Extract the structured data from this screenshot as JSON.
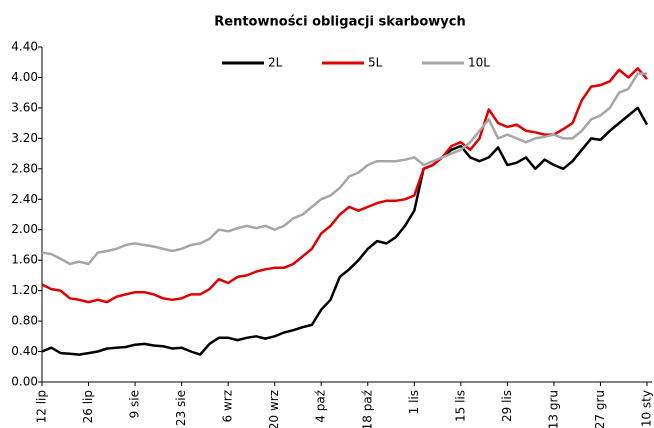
{
  "chart_data": {
    "type": "line",
    "title": "Rentowności obligacji skarbowych",
    "categories": [
      "12 lip",
      null,
      null,
      null,
      null,
      "26 lip",
      null,
      null,
      null,
      null,
      "9 sie",
      null,
      null,
      null,
      null,
      "23 sie",
      null,
      null,
      null,
      null,
      "6 wrz",
      null,
      null,
      null,
      null,
      "20 wrz",
      null,
      null,
      null,
      null,
      "4 paź",
      null,
      null,
      null,
      null,
      "18 paź",
      null,
      null,
      null,
      null,
      "1 lis",
      null,
      null,
      null,
      null,
      "15 lis",
      null,
      null,
      null,
      null,
      "29 lis",
      null,
      null,
      null,
      null,
      "13 gru",
      null,
      null,
      null,
      null,
      "27 gru",
      null,
      null,
      null,
      null,
      "10 sty"
    ],
    "series": [
      {
        "name": "2L",
        "color": "#000000",
        "values": [
          0.4,
          0.45,
          0.38,
          0.37,
          0.36,
          0.38,
          0.4,
          0.44,
          0.45,
          0.46,
          0.49,
          0.5,
          0.48,
          0.47,
          0.44,
          0.45,
          0.4,
          0.36,
          0.5,
          0.58,
          0.58,
          0.55,
          0.58,
          0.6,
          0.57,
          0.6,
          0.65,
          0.68,
          0.72,
          0.75,
          0.95,
          1.08,
          1.38,
          1.48,
          1.6,
          1.75,
          1.85,
          1.82,
          1.9,
          2.05,
          2.25,
          2.8,
          2.85,
          2.95,
          3.05,
          3.1,
          2.95,
          2.9,
          2.95,
          3.08,
          2.85,
          2.88,
          2.95,
          2.8,
          2.92,
          2.85,
          2.8,
          2.9,
          3.05,
          3.2,
          3.18,
          3.3,
          3.4,
          3.5,
          3.6,
          3.38
        ]
      },
      {
        "name": "5L",
        "color": "#e00000",
        "values": [
          1.28,
          1.22,
          1.2,
          1.1,
          1.08,
          1.05,
          1.08,
          1.05,
          1.12,
          1.15,
          1.18,
          1.18,
          1.15,
          1.1,
          1.08,
          1.1,
          1.15,
          1.15,
          1.22,
          1.35,
          1.3,
          1.38,
          1.4,
          1.45,
          1.48,
          1.5,
          1.5,
          1.55,
          1.65,
          1.75,
          1.95,
          2.05,
          2.2,
          2.3,
          2.25,
          2.3,
          2.35,
          2.38,
          2.38,
          2.4,
          2.45,
          2.8,
          2.85,
          2.95,
          3.1,
          3.15,
          3.05,
          3.2,
          3.58,
          3.4,
          3.35,
          3.38,
          3.3,
          3.28,
          3.25,
          3.25,
          3.32,
          3.4,
          3.7,
          3.88,
          3.9,
          3.95,
          4.1,
          4.0,
          4.12,
          3.98
        ]
      },
      {
        "name": "10L",
        "color": "#a6a6a6",
        "values": [
          1.7,
          1.68,
          1.62,
          1.55,
          1.58,
          1.55,
          1.7,
          1.72,
          1.75,
          1.8,
          1.82,
          1.8,
          1.78,
          1.75,
          1.72,
          1.75,
          1.8,
          1.82,
          1.88,
          2.0,
          1.98,
          2.02,
          2.05,
          2.02,
          2.05,
          2.0,
          2.05,
          2.15,
          2.2,
          2.3,
          2.4,
          2.45,
          2.55,
          2.7,
          2.75,
          2.85,
          2.9,
          2.9,
          2.9,
          2.92,
          2.95,
          2.85,
          2.9,
          2.95,
          3.0,
          3.05,
          3.15,
          3.3,
          3.45,
          3.2,
          3.25,
          3.2,
          3.15,
          3.2,
          3.22,
          3.25,
          3.2,
          3.2,
          3.3,
          3.45,
          3.5,
          3.6,
          3.8,
          3.85,
          4.05,
          4.05
        ]
      }
    ],
    "ylim": [
      0,
      4.4
    ],
    "yticks": [
      {
        "value": 0,
        "label": "0.00"
      },
      {
        "value": 0.4,
        "label": "0.40"
      },
      {
        "value": 0.8,
        "label": "0.80"
      },
      {
        "value": 1.2,
        "label": "1.20"
      },
      {
        "value": 1.6,
        "label": "1.60"
      },
      {
        "value": 2,
        "label": "2.00"
      },
      {
        "value": 2.4,
        "label": "2.40"
      },
      {
        "value": 2.8,
        "label": "2.80"
      },
      {
        "value": 3.2,
        "label": "3.20"
      },
      {
        "value": 3.6,
        "label": "3.60"
      },
      {
        "value": 4,
        "label": "4.00"
      },
      {
        "value": 4.4,
        "label": "4.40"
      }
    ],
    "legend": "top"
  }
}
